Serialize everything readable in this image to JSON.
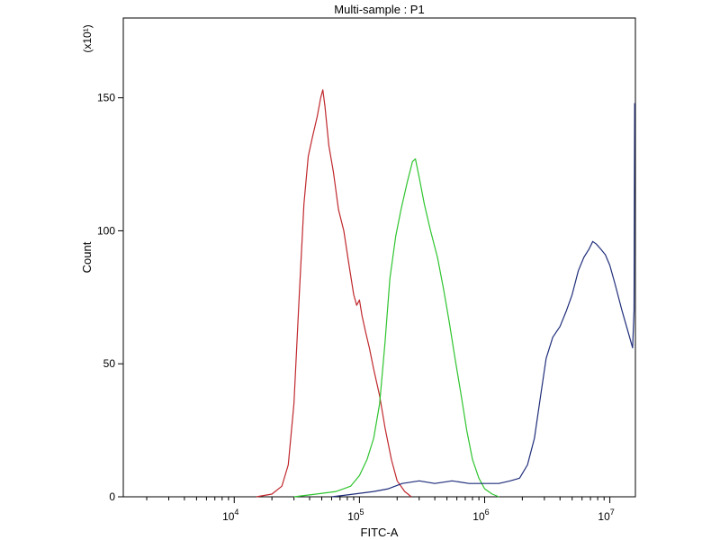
{
  "chart_data": {
    "type": "line",
    "title": "Multi-sample : P1",
    "xlabel": "FITC-A",
    "ylabel": "Count",
    "y_multiplier_label": "(x10¹)",
    "x_scale": "log",
    "xlim": [
      1300,
      16000000
    ],
    "ylim": [
      0,
      180
    ],
    "x_ticks": [
      {
        "value": 10000,
        "base": "10",
        "exp": "4"
      },
      {
        "value": 100000,
        "base": "10",
        "exp": "5"
      },
      {
        "value": 1000000,
        "base": "10",
        "exp": "6"
      },
      {
        "value": 10000000,
        "base": "10",
        "exp": "7"
      }
    ],
    "y_ticks": [
      0,
      50,
      100,
      150
    ],
    "series": [
      {
        "color": "#c0282d",
        "points": [
          [
            15000,
            0
          ],
          [
            20000,
            1
          ],
          [
            24000,
            4
          ],
          [
            27000,
            12
          ],
          [
            30000,
            35
          ],
          [
            33000,
            75
          ],
          [
            36000,
            110
          ],
          [
            39000,
            128
          ],
          [
            42000,
            135
          ],
          [
            46000,
            143
          ],
          [
            49000,
            150
          ],
          [
            51000,
            153
          ],
          [
            53000,
            147
          ],
          [
            57000,
            132
          ],
          [
            62000,
            122
          ],
          [
            68000,
            108
          ],
          [
            75000,
            100
          ],
          [
            82000,
            88
          ],
          [
            90000,
            76
          ],
          [
            95000,
            72
          ],
          [
            100000,
            74
          ],
          [
            105000,
            68
          ],
          [
            112000,
            62
          ],
          [
            120000,
            56
          ],
          [
            130000,
            48
          ],
          [
            145000,
            38
          ],
          [
            160000,
            26
          ],
          [
            180000,
            14
          ],
          [
            200000,
            6
          ],
          [
            230000,
            2
          ],
          [
            260000,
            0
          ]
        ]
      },
      {
        "color": "#2ec42e",
        "points": [
          [
            30000,
            0
          ],
          [
            45000,
            1
          ],
          [
            65000,
            2
          ],
          [
            85000,
            4
          ],
          [
            100000,
            8
          ],
          [
            115000,
            14
          ],
          [
            130000,
            22
          ],
          [
            145000,
            35
          ],
          [
            160000,
            58
          ],
          [
            175000,
            82
          ],
          [
            195000,
            98
          ],
          [
            215000,
            108
          ],
          [
            240000,
            118
          ],
          [
            265000,
            126
          ],
          [
            280000,
            127
          ],
          [
            300000,
            120
          ],
          [
            330000,
            110
          ],
          [
            370000,
            100
          ],
          [
            420000,
            90
          ],
          [
            470000,
            78
          ],
          [
            520000,
            66
          ],
          [
            580000,
            52
          ],
          [
            650000,
            38
          ],
          [
            720000,
            25
          ],
          [
            800000,
            14
          ],
          [
            900000,
            7
          ],
          [
            1000000,
            3
          ],
          [
            1150000,
            1
          ],
          [
            1300000,
            0
          ]
        ]
      },
      {
        "color": "#1f2d7a",
        "points": [
          [
            60000,
            0
          ],
          [
            90000,
            1
          ],
          [
            130000,
            2
          ],
          [
            170000,
            3
          ],
          [
            220000,
            5
          ],
          [
            300000,
            6
          ],
          [
            400000,
            5
          ],
          [
            550000,
            6
          ],
          [
            750000,
            5
          ],
          [
            1000000,
            5
          ],
          [
            1300000,
            5
          ],
          [
            1600000,
            6
          ],
          [
            1900000,
            7
          ],
          [
            2200000,
            12
          ],
          [
            2500000,
            22
          ],
          [
            2800000,
            38
          ],
          [
            3100000,
            52
          ],
          [
            3500000,
            60
          ],
          [
            4000000,
            64
          ],
          [
            4500000,
            70
          ],
          [
            5000000,
            76
          ],
          [
            5600000,
            85
          ],
          [
            6200000,
            90
          ],
          [
            6800000,
            93
          ],
          [
            7300000,
            96
          ],
          [
            7800000,
            95
          ],
          [
            8500000,
            93
          ],
          [
            9200000,
            91
          ],
          [
            10000000,
            87
          ],
          [
            11000000,
            80
          ],
          [
            12500000,
            70
          ],
          [
            14000000,
            62
          ],
          [
            15200000,
            56
          ],
          [
            15600000,
            70
          ],
          [
            15800000,
            148
          ]
        ]
      }
    ]
  }
}
